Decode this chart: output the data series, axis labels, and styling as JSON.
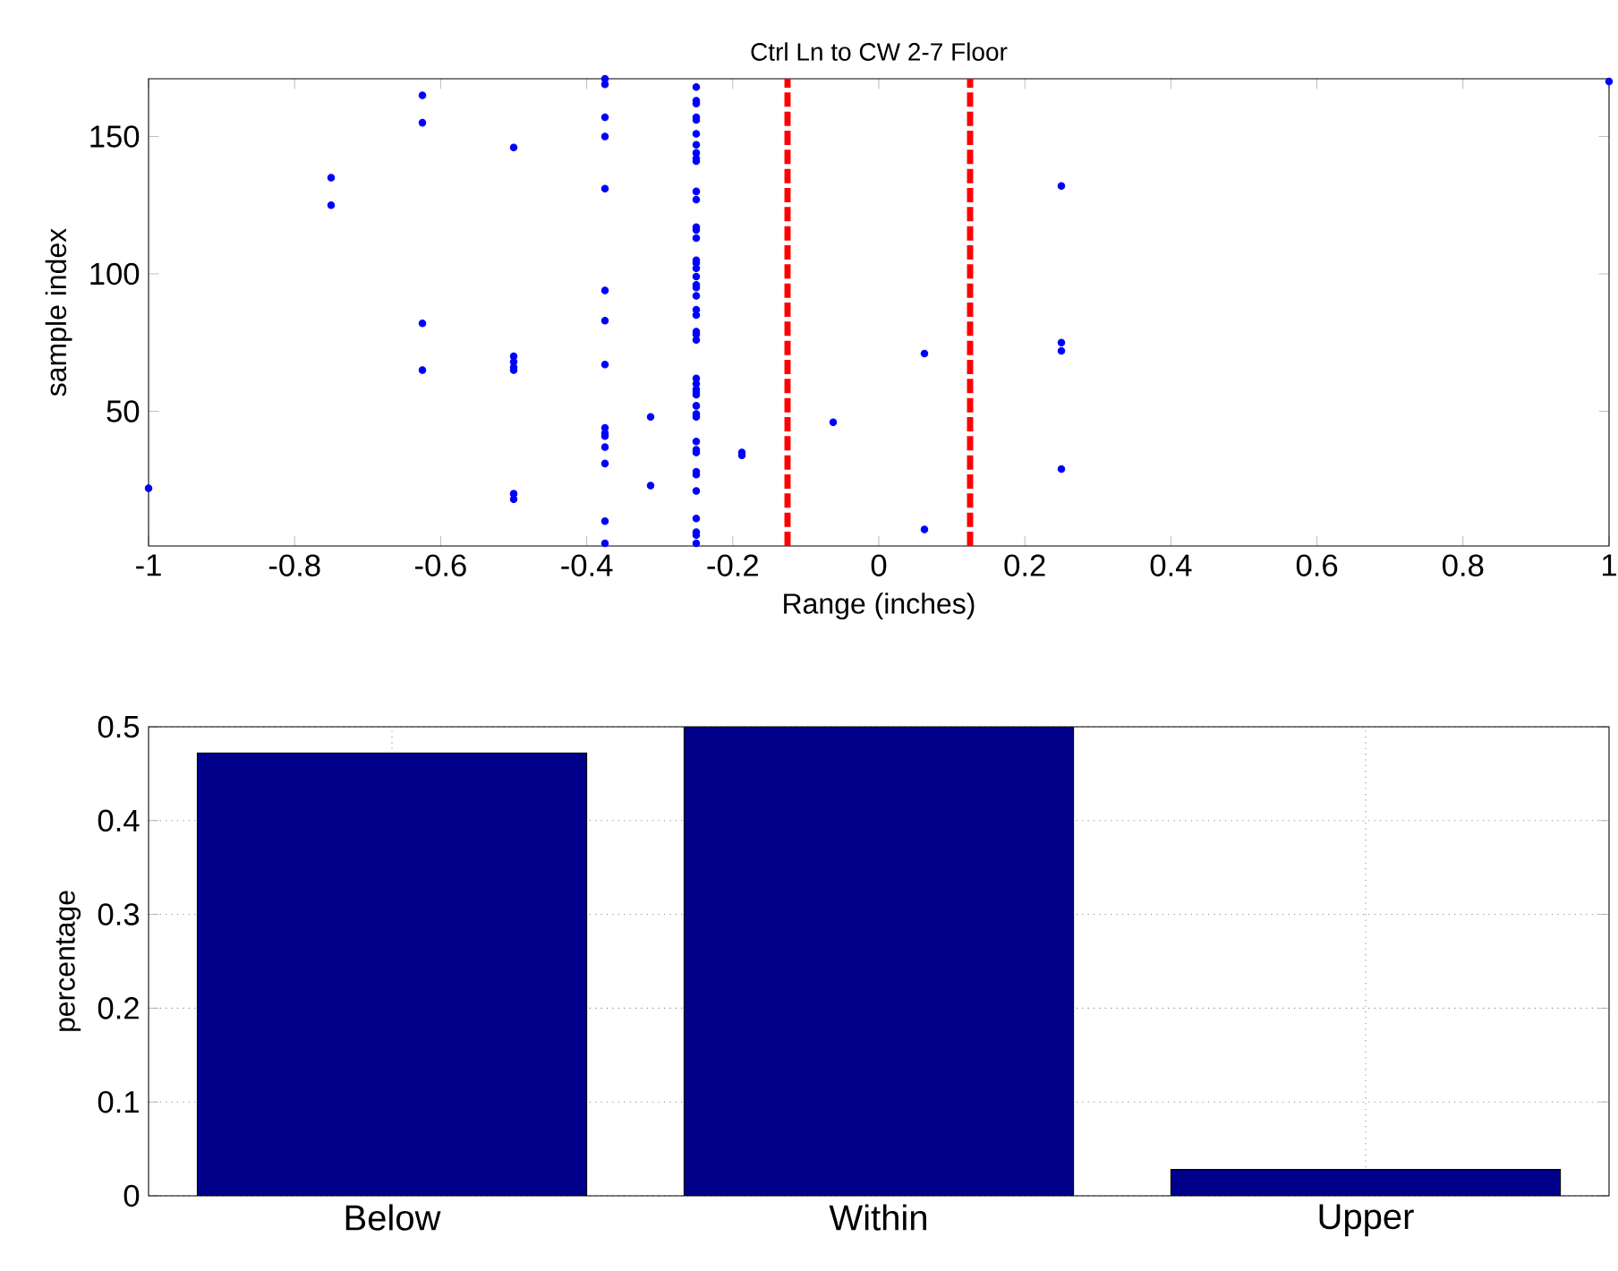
{
  "chart_data": [
    {
      "type": "scatter",
      "title": "Ctrl Ln to CW 2-7 Floor",
      "xlabel": "Range (inches)",
      "ylabel": "sample index",
      "series": [
        {
          "color": "#0000ff",
          "x": [
            -1,
            -0.75,
            -0.75,
            -0.625,
            -0.625,
            -0.625,
            -0.625,
            -0.5,
            -0.5,
            -0.5,
            -0.5,
            -0.5,
            -0.5,
            -0.5,
            -0.375,
            -0.375,
            -0.375,
            -0.375,
            -0.375,
            -0.375,
            -0.375,
            -0.375,
            -0.375,
            -0.375,
            -0.375,
            -0.375,
            -0.375,
            -0.375,
            -0.375,
            -0.3125,
            -0.3125,
            -0.25,
            -0.25,
            -0.25,
            -0.25,
            -0.25,
            -0.25,
            -0.25,
            -0.25,
            -0.25,
            -0.25,
            -0.25,
            -0.25,
            -0.25,
            -0.25,
            -0.25,
            -0.25,
            -0.25,
            -0.25,
            -0.25,
            -0.25,
            -0.25,
            -0.25,
            -0.25,
            -0.25,
            -0.25,
            -0.25,
            -0.25,
            -0.25,
            -0.25,
            -0.25,
            -0.25,
            -0.25,
            -0.25,
            -0.25,
            -0.25,
            -0.25,
            -0.25,
            -0.25,
            -0.25,
            -0.25,
            -0.25,
            -0.25,
            -0.25,
            -0.25,
            -0.25,
            -0.1875,
            -0.1875,
            -0.0625,
            0.0625,
            0.0625,
            0.25,
            0.25,
            0.25,
            0.25,
            1
          ],
          "values": [
            22,
            135,
            125,
            165,
            155,
            82,
            65,
            146,
            70,
            68,
            66,
            65,
            20,
            18,
            171,
            169,
            157,
            150,
            131,
            94,
            83,
            67,
            44,
            42,
            41,
            37,
            31,
            10,
            2,
            48,
            23,
            168,
            163,
            162,
            157,
            156,
            151,
            147,
            144,
            142,
            141,
            130,
            127,
            117,
            116,
            113,
            105,
            104,
            102,
            99,
            96,
            95,
            92,
            87,
            85,
            79,
            78,
            76,
            62,
            60,
            58,
            57,
            56,
            52,
            49,
            48,
            39,
            36,
            35,
            28,
            27,
            21,
            11,
            6,
            5,
            2,
            35,
            34,
            46,
            71,
            7,
            132,
            75,
            72,
            29,
            170
          ]
        }
      ],
      "marker": "circle",
      "xlim": [
        -1,
        1
      ],
      "xticks": [
        -1,
        -0.8,
        -0.6,
        -0.4,
        -0.2,
        0,
        0.2,
        0.4,
        0.6,
        0.8,
        1
      ],
      "ylim": [
        1,
        171
      ],
      "yticks": [
        50,
        100,
        150
      ],
      "ref_lines": [
        {
          "axis": "x",
          "value": -0.125,
          "color": "#ff0000",
          "line_style": "dashed"
        },
        {
          "axis": "x",
          "value": 0.125,
          "color": "#ff0000",
          "line_style": "dashed"
        }
      ]
    },
    {
      "type": "bar",
      "ylabel": "percentage",
      "categories": [
        "Below",
        "Within",
        "Upper"
      ],
      "values": [
        0.472,
        0.5,
        0.028
      ],
      "color": "#00008b",
      "ylim": [
        0,
        0.5
      ],
      "yticks": [
        0,
        0.1,
        0.2,
        0.3,
        0.4,
        0.5
      ],
      "grid": true
    }
  ]
}
